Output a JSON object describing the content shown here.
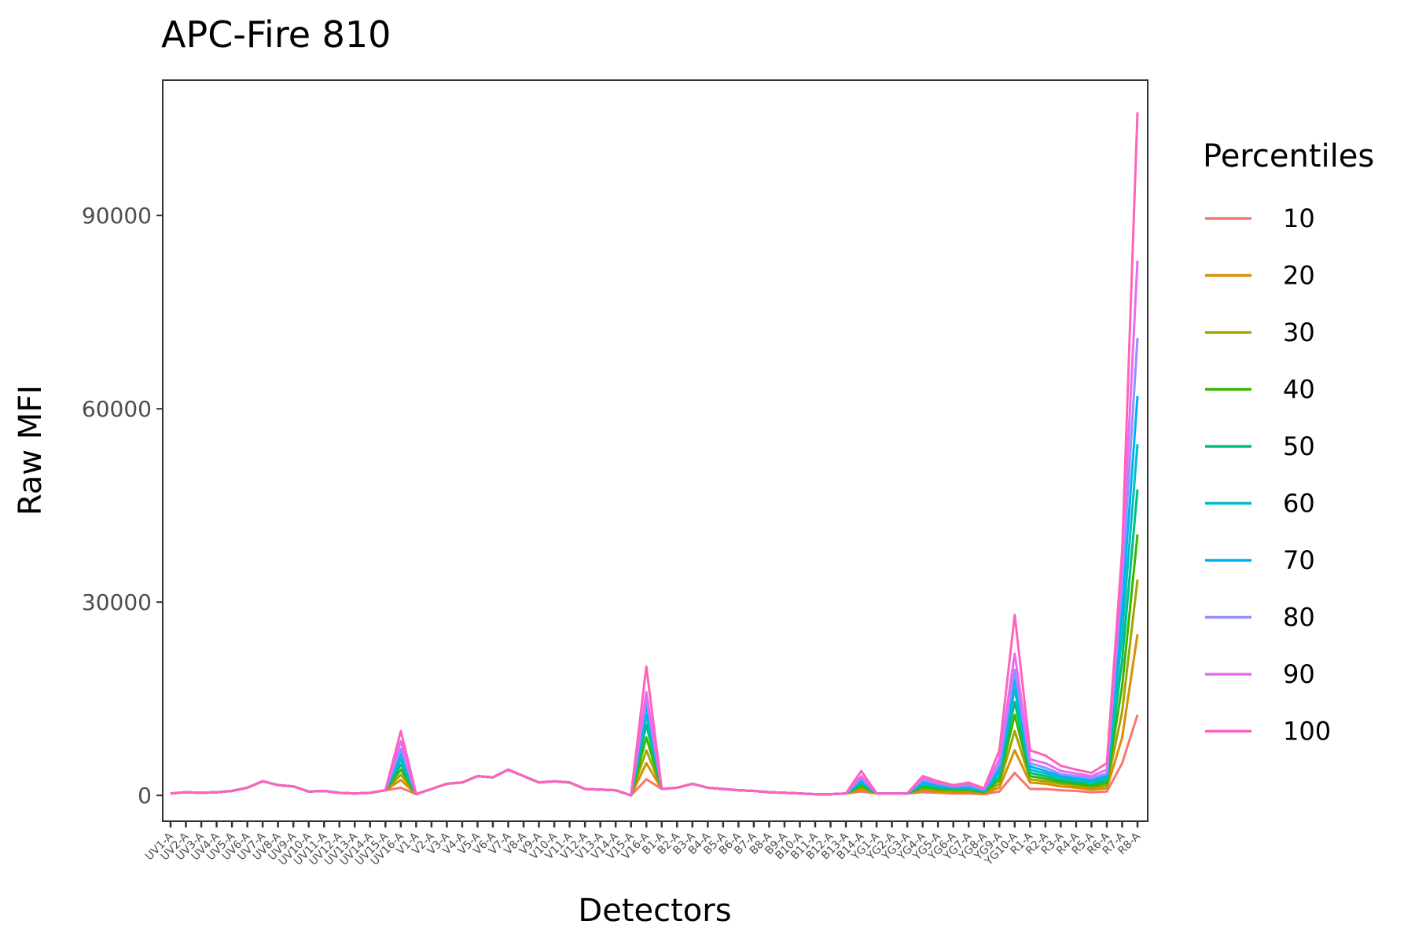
{
  "chart_data": {
    "type": "line",
    "title": "APC-Fire 810",
    "xlabel": "Detectors",
    "ylabel": "Raw MFI",
    "legend_title": "Percentiles",
    "legend_position": "right",
    "grid": false,
    "ylim": [
      -4000,
      111000
    ],
    "yticks": [
      0,
      30000,
      60000,
      90000
    ],
    "categories": [
      "UV1-A",
      "UV2-A",
      "UV3-A",
      "UV4-A",
      "UV5-A",
      "UV6-A",
      "UV7-A",
      "UV8-A",
      "UV9-A",
      "UV10-A",
      "UV11-A",
      "UV12-A",
      "UV13-A",
      "UV14-A",
      "UV15-A",
      "UV16-A",
      "V1-A",
      "V2-A",
      "V3-A",
      "V4-A",
      "V5-A",
      "V6-A",
      "V7-A",
      "V8-A",
      "V9-A",
      "V10-A",
      "V11-A",
      "V12-A",
      "V13-A",
      "V14-A",
      "V15-A",
      "V16-A",
      "B1-A",
      "B2-A",
      "B3-A",
      "B4-A",
      "B5-A",
      "B6-A",
      "B7-A",
      "B8-A",
      "B9-A",
      "B10-A",
      "B11-A",
      "B12-A",
      "B13-A",
      "B14-A",
      "YG1-A",
      "YG2-A",
      "YG3-A",
      "YG4-A",
      "YG5-A",
      "YG6-A",
      "YG7-A",
      "YG8-A",
      "YG9-A",
      "YG10-A",
      "R1-A",
      "R2-A",
      "R3-A",
      "R4-A",
      "R5-A",
      "R6-A",
      "R7-A",
      "R8-A"
    ],
    "baseline": [
      300,
      500,
      400,
      500,
      700,
      1200,
      2200,
      1600,
      1400,
      600,
      700,
      400,
      300,
      400,
      800,
      0,
      200,
      1000,
      1800,
      2000,
      3000,
      2800,
      4000,
      3000,
      2000,
      2200,
      2000,
      1000,
      900,
      800,
      0,
      0,
      1000,
      1200,
      1800,
      1200,
      1000,
      800,
      700,
      500,
      400,
      300,
      200,
      200,
      300,
      0,
      300,
      300,
      300,
      0,
      0,
      0,
      0,
      0,
      0,
      0,
      0,
      0,
      0,
      0,
      0,
      0,
      0,
      0
    ],
    "peaks": {
      "UV16-A": [
        1200,
        2400,
        3200,
        4000,
        4800,
        5600,
        6400,
        7200,
        8400,
        10000
      ],
      "V16-A": [
        2500,
        5000,
        7000,
        9000,
        11000,
        12500,
        14000,
        15000,
        16000,
        20000
      ],
      "B14-A": [
        600,
        900,
        1200,
        1500,
        1800,
        2100,
        2400,
        2700,
        3000,
        3800
      ],
      "YG4-A": [
        500,
        800,
        1000,
        1300,
        1600,
        1800,
        2100,
        2400,
        2700,
        3000
      ],
      "YG5-A": [
        400,
        600,
        800,
        1000,
        1200,
        1400,
        1600,
        1800,
        2000,
        2200
      ],
      "YG6-A": [
        300,
        500,
        700,
        900,
        1000,
        1200,
        1300,
        1400,
        1500,
        1600
      ],
      "YG7-A": [
        300,
        500,
        700,
        900,
        1000,
        1200,
        1400,
        1600,
        1800,
        2000
      ],
      "YG8-A": [
        200,
        300,
        400,
        500,
        600,
        700,
        800,
        900,
        1000,
        1100
      ],
      "YG9-A": [
        600,
        1200,
        1800,
        2400,
        3000,
        3600,
        4200,
        4800,
        5600,
        7000
      ],
      "YG10-A": [
        3500,
        7000,
        10000,
        12500,
        14500,
        16500,
        18000,
        19500,
        22000,
        28000
      ],
      "R1-A": [
        1000,
        2000,
        2500,
        3000,
        3500,
        4000,
        4500,
        5000,
        5600,
        7000
      ],
      "R2-A": [
        1000,
        1800,
        2200,
        2600,
        3000,
        3400,
        3800,
        4300,
        5000,
        6200
      ],
      "R3-A": [
        800,
        1400,
        1800,
        2100,
        2400,
        2700,
        3000,
        3300,
        3800,
        4600
      ],
      "R4-A": [
        700,
        1200,
        1500,
        1800,
        2100,
        2400,
        2700,
        3000,
        3400,
        4000
      ],
      "R5-A": [
        500,
        900,
        1200,
        1500,
        1800,
        2100,
        2400,
        2700,
        3000,
        3500
      ],
      "R6-A": [
        600,
        1100,
        1500,
        1900,
        2300,
        2700,
        3000,
        3400,
        4000,
        5000
      ],
      "R7-A": [
        5000,
        9000,
        13000,
        17000,
        21000,
        25000,
        29000,
        33000,
        36000,
        38000
      ],
      "R8-A": [
        12500,
        25000,
        33500,
        40500,
        47500,
        54500,
        62000,
        71000,
        83000,
        106000
      ]
    },
    "series": [
      {
        "name": "10",
        "color": "#F8766D"
      },
      {
        "name": "20",
        "color": "#D89000"
      },
      {
        "name": "30",
        "color": "#A3A500"
      },
      {
        "name": "40",
        "color": "#39B600"
      },
      {
        "name": "50",
        "color": "#00BF7D"
      },
      {
        "name": "60",
        "color": "#00BFC4"
      },
      {
        "name": "70",
        "color": "#00B0F6"
      },
      {
        "name": "80",
        "color": "#9590FF"
      },
      {
        "name": "90",
        "color": "#E76BF3"
      },
      {
        "name": "100",
        "color": "#FF62BC"
      }
    ]
  }
}
